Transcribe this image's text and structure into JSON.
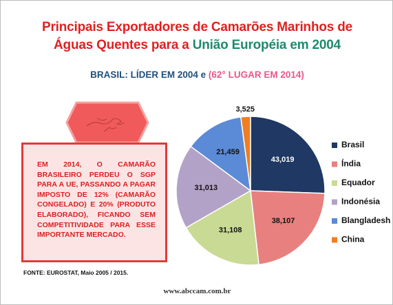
{
  "chart_data": {
    "type": "pie",
    "title": [
      "Principais Exportadores de Camarões Marinhos de",
      "Águas Quentes  para a ",
      "União Européia em 2004"
    ],
    "subtitle": [
      "BRASIL: LÍDER  EM 2004 e ",
      "(62° LUGAR EM 2014)"
    ],
    "categories": [
      "Brasil",
      "Índia",
      "Equador",
      "Indonésia",
      "Blangladesh",
      "China"
    ],
    "values": [
      43019,
      38107,
      31108,
      31013,
      21459,
      3525
    ],
    "value_labels": [
      "43,019",
      "38,107",
      "31,108",
      "31,013",
      "21,459",
      "3,525"
    ],
    "colors": [
      "#1f3864",
      "#e88080",
      "#c8da94",
      "#b3a2c7",
      "#5b8ad6",
      "#f07e22"
    ],
    "legend": "right"
  },
  "note_box": {
    "lines": [
      "EM 2014, O CAMARÃO",
      "BRASILEIRO PERDEU O SGP",
      "PARA A UE, PASSANDO A PAGAR",
      "IMPOSTO DE 12% (CAMARÃO",
      "CONGELADO) E 20% (PRODUTO",
      "ELABORADO), FICANDO SEM",
      "COMPETITIVIDADE PARA ESSE",
      "IMPORTANTE MERCADO."
    ]
  },
  "source": "FONTE: EUROSTAT, Maio 2005 / 2015.",
  "footer": "www.abccam.com.br"
}
